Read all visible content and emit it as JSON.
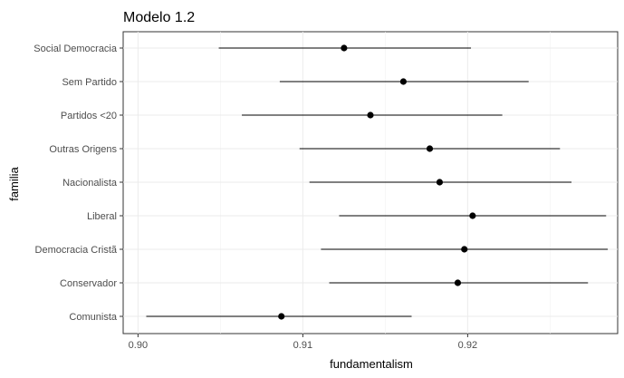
{
  "chart_data": {
    "type": "scatter",
    "title": "Modelo 1.2",
    "xlabel": "fundamentalism",
    "ylabel": "familia",
    "xlim": [
      0.8991,
      0.9291
    ],
    "x_ticks": [
      "0.90",
      "0.91",
      "0.92"
    ],
    "x_tick_values": [
      0.9,
      0.91,
      0.92
    ],
    "grid": true,
    "categories": [
      "Social Democracia",
      "Sem Partido",
      "Partidos <20",
      "Outras Origens",
      "Nacionalista",
      "Liberal",
      "Democracia Cristã",
      "Conservador",
      "Comunista"
    ],
    "points": [
      {
        "category": "Social Democracia",
        "x": 0.9125,
        "lower": 0.9049,
        "upper": 0.9202
      },
      {
        "category": "Sem Partido",
        "x": 0.9161,
        "lower": 0.9086,
        "upper": 0.9237
      },
      {
        "category": "Partidos <20",
        "x": 0.9141,
        "lower": 0.9063,
        "upper": 0.9221
      },
      {
        "category": "Outras Origens",
        "x": 0.9177,
        "lower": 0.9098,
        "upper": 0.9256
      },
      {
        "category": "Nacionalista",
        "x": 0.9183,
        "lower": 0.9104,
        "upper": 0.9263
      },
      {
        "category": "Liberal",
        "x": 0.9203,
        "lower": 0.9122,
        "upper": 0.9284
      },
      {
        "category": "Democracia Cristã",
        "x": 0.9198,
        "lower": 0.9111,
        "upper": 0.9285
      },
      {
        "category": "Conservador",
        "x": 0.9194,
        "lower": 0.9116,
        "upper": 0.9273
      },
      {
        "category": "Comunista",
        "x": 0.9087,
        "lower": 0.9005,
        "upper": 0.9166
      }
    ]
  }
}
